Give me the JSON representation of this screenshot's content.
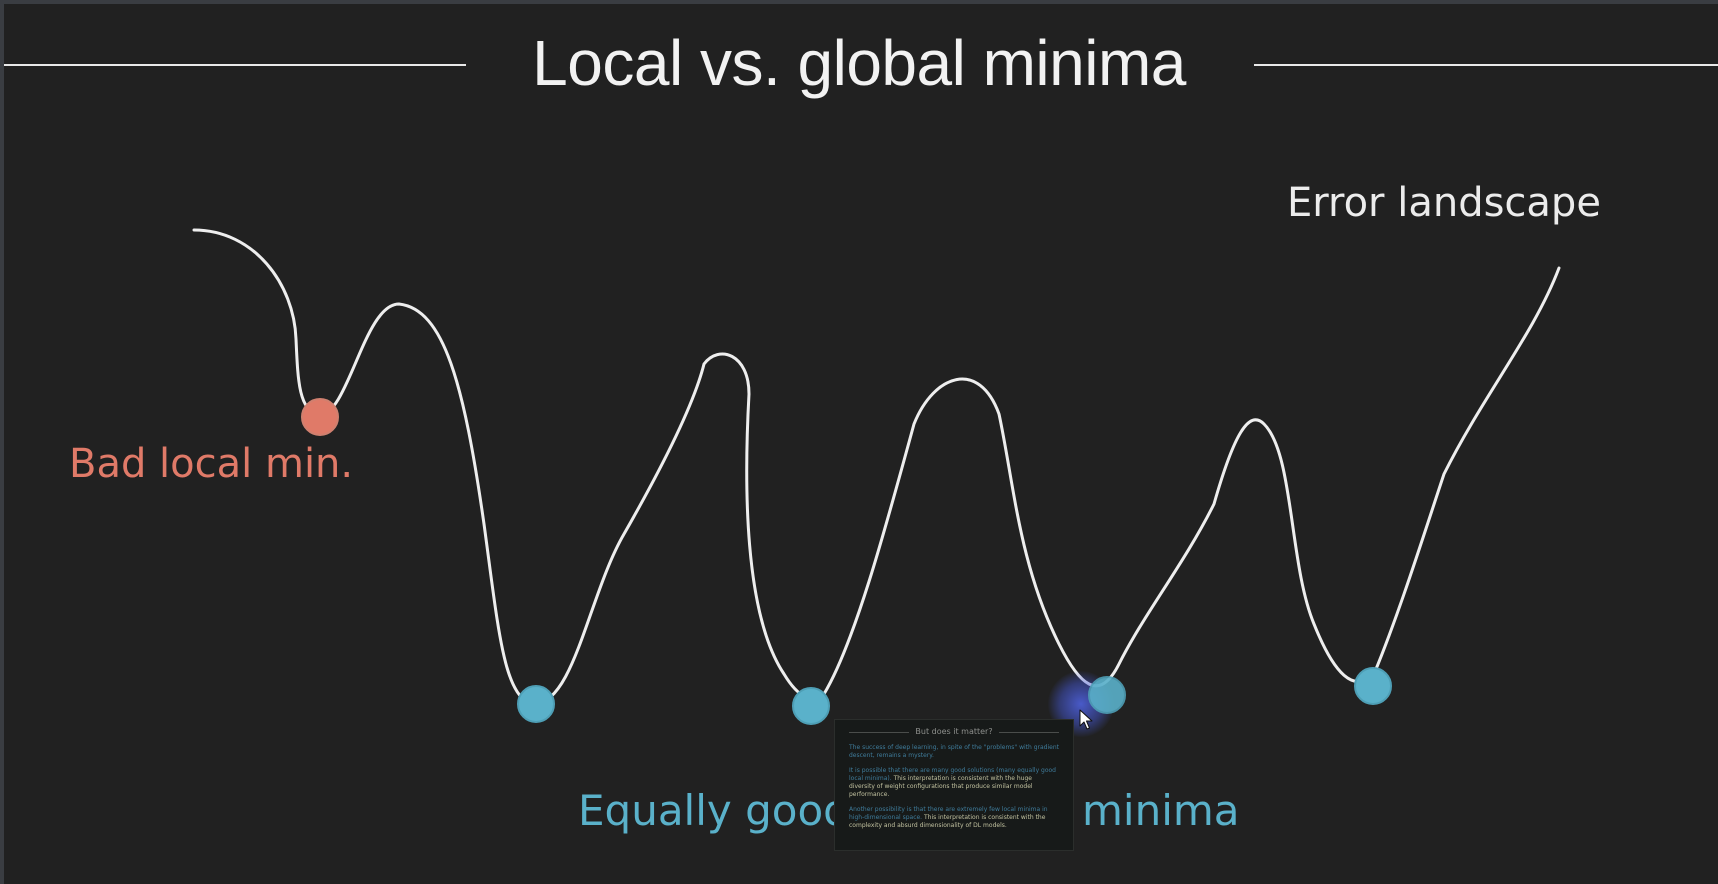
{
  "slide": {
    "title": "Local vs. global minima",
    "error_label": "Error landscape",
    "bad_label": "Bad local min.",
    "good_label_part1": "Equally good",
    "good_label_part2": "minima",
    "colors": {
      "background": "#212121",
      "curve": "#eeeeee",
      "bad_min": "#e07a68",
      "good_min": "#5ab1ca",
      "title_rule": "#e8e8e8"
    }
  },
  "thumbnail": {
    "title": "But does it matter?",
    "para1": "The success of deep learning, in spite of the \"problems\" with gradient descent, remains a mystery.",
    "para2_blue": "It is possible that there are many good solutions (many equally good local minima).",
    "para2_yellow": "This interpretation is consistent with the huge diversity of weight configurations that produce similar model performance.",
    "para3_blue": "Another possibility is that there are extremely few local minima in high-dimensional space.",
    "para3_yellow": "This interpretation is consistent with the complexity and absurd dimensionality of DL models."
  },
  "icons": {
    "cursor": "mouse-pointer-icon",
    "click_highlight": "click-highlight-icon"
  }
}
